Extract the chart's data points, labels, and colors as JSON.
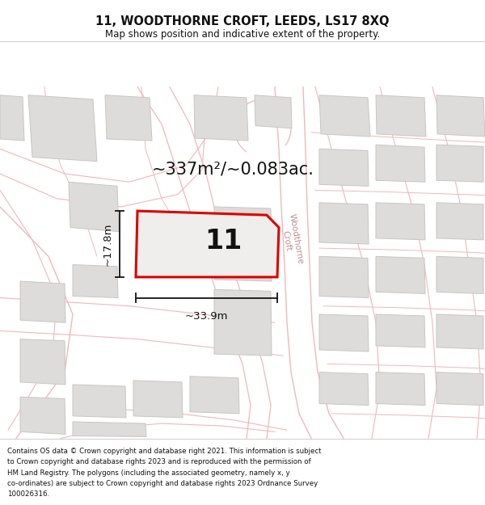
{
  "title_line1": "11, WOODTHORNE CROFT, LEEDS, LS17 8XQ",
  "title_line2": "Map shows position and indicative extent of the property.",
  "area_text": "~337m²/~0.083ac.",
  "width_label": "~33.9m",
  "height_label": "~17.8m",
  "number_label": "11",
  "street_label": "Woodthorne\nCroft",
  "footer_lines": [
    "Contains OS data © Crown copyright and database right 2021. This information is subject",
    "to Crown copyright and database rights 2023 and is reproduced with the permission of",
    "HM Land Registry. The polygons (including the associated geometry, namely x, y",
    "co-ordinates) are subject to Crown copyright and database rights 2023 Ordnance Survey",
    "100026316."
  ],
  "bg_color": "#ffffff",
  "map_bg_color": "#f7f6f4",
  "plot_border_color": "#dd0000",
  "dim_line_color": "#111111",
  "road_color": "#f0b8b8",
  "building_fill": "#dedcda",
  "building_border": "#c8c5c2",
  "text_color": "#111111",
  "street_text_color": "#c09090",
  "title_fontsize": 10.5,
  "subtitle_fontsize": 8.5,
  "area_fontsize": 15,
  "number_fontsize": 24,
  "dim_fontsize": 9.5,
  "street_fontsize": 7.5,
  "footer_fontsize": 6.2
}
